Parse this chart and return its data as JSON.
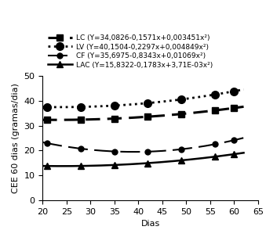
{
  "title": "",
  "xlabel": "Dias",
  "ylabel": "CEE 60 dias (gramas/dia)",
  "xlim": [
    20,
    65
  ],
  "ylim": [
    0,
    50
  ],
  "xticks": [
    20,
    25,
    30,
    35,
    40,
    45,
    50,
    55,
    60,
    65
  ],
  "yticks": [
    0,
    10,
    20,
    30,
    40,
    50
  ],
  "x_data": [
    21,
    28,
    35,
    42,
    49,
    56,
    60
  ],
  "curves": [
    {
      "label": "LC (Y=34,0826-0,1571x+0,003451x²)",
      "a": 34.0826,
      "b": -0.1571,
      "c": 0.003451,
      "color": "#000000",
      "linestyle": "dashed",
      "marker": "s",
      "linewidth": 2.2,
      "markersize": 6,
      "dashes": [
        6,
        3
      ]
    },
    {
      "label": "LV (Y=40,1504-0,2297x+0,004849x²)",
      "a": 40.1504,
      "b": -0.2297,
      "c": 0.004849,
      "color": "#000000",
      "linestyle": "dotted",
      "marker": "o",
      "linewidth": 2.0,
      "markersize": 7,
      "dashes": null
    },
    {
      "label": "CF (Y=35,6975-0,8343x+0,01069x²)",
      "a": 35.6975,
      "b": -0.8343,
      "c": 0.01069,
      "color": "#000000",
      "linestyle": "dashed",
      "marker": "o",
      "linewidth": 1.5,
      "markersize": 5,
      "dashes": [
        12,
        4
      ]
    },
    {
      "label": "LAC (Y=15,8322-0,1783x+3,71E-03x²)",
      "a": 15.8322,
      "b": -0.1783,
      "c": 0.00371,
      "color": "#000000",
      "linestyle": "solid",
      "marker": "^",
      "linewidth": 1.8,
      "markersize": 6,
      "dashes": null
    }
  ],
  "background_color": "#ffffff",
  "legend_fontsize": 6.5,
  "axis_fontsize": 8,
  "tick_fontsize": 8
}
